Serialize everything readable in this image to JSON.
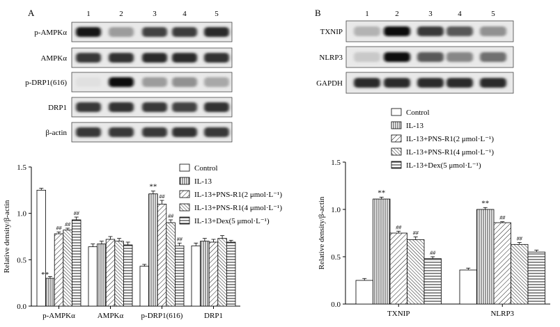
{
  "panel_a": {
    "letter": "A",
    "lane_numbers": [
      "1",
      "2",
      "3",
      "4",
      "5"
    ],
    "blots": [
      {
        "label": "p-AMPKα",
        "intensity": [
          0.95,
          0.35,
          0.75,
          0.78,
          0.85
        ]
      },
      {
        "label": "AMPKα",
        "intensity": [
          0.8,
          0.82,
          0.85,
          0.85,
          0.82
        ]
      },
      {
        "label": "p-DRP1(616)",
        "intensity": [
          0.05,
          1.0,
          0.35,
          0.4,
          0.3
        ]
      },
      {
        "label": "DRP1",
        "intensity": [
          0.8,
          0.82,
          0.8,
          0.75,
          0.82
        ]
      },
      {
        "label": "β-actin",
        "intensity": [
          0.8,
          0.8,
          0.8,
          0.82,
          0.8
        ]
      }
    ]
  },
  "panel_b": {
    "letter": "B",
    "lane_numbers": [
      "1",
      "2",
      "3",
      "4",
      "5"
    ],
    "blots": [
      {
        "label": "TXNIP",
        "intensity": [
          0.25,
          1.0,
          0.8,
          0.65,
          0.4
        ]
      },
      {
        "label": "NLRP3",
        "intensity": [
          0.15,
          1.0,
          0.65,
          0.45,
          0.55
        ]
      },
      {
        "label": "GAPDH",
        "intensity": [
          0.85,
          0.85,
          0.85,
          0.85,
          0.85
        ]
      }
    ]
  },
  "legend_items": [
    "Control",
    "IL-13",
    "IL-13+PNS-R1(2 μmol·L⁻¹)",
    "IL-13+PNS-R1(4 μmol·L⁻¹)",
    "IL-13+Dex(5 μmol·L⁻¹)"
  ],
  "significance": {
    "vs_control": "**",
    "vs_il13": "##"
  },
  "chart_data": [
    {
      "type": "bar",
      "panel": "A",
      "ylabel": "Relative density/β-actin",
      "ylim": [
        0,
        1.5
      ],
      "yticks": [
        "0.0",
        "0.5",
        "1.0",
        "1.5"
      ],
      "categories": [
        "p-AMPKα",
        "AMPKα",
        "p-DRP1(616)",
        "DRP1"
      ],
      "series": [
        {
          "name": "Control",
          "pattern": "white",
          "values": [
            1.25,
            0.64,
            0.43,
            0.65
          ],
          "errors": [
            0.02,
            0.03,
            0.02,
            0.03
          ],
          "marks": [
            "",
            "",
            "",
            ""
          ]
        },
        {
          "name": "IL-13",
          "pattern": "vertical",
          "values": [
            0.3,
            0.67,
            1.21,
            0.7
          ],
          "errors": [
            0.02,
            0.03,
            0.03,
            0.03
          ],
          "marks": [
            "**",
            "",
            "**",
            ""
          ]
        },
        {
          "name": "IL-13+PNS-R1(2 μmol·L⁻¹)",
          "pattern": "diagonal-right",
          "values": [
            0.78,
            0.72,
            1.1,
            0.69
          ],
          "errors": [
            0.02,
            0.03,
            0.04,
            0.03
          ],
          "marks": [
            "##",
            "",
            "##",
            ""
          ]
        },
        {
          "name": "IL-13+PNS-R1(4 μmol·L⁻¹)",
          "pattern": "diagonal-left",
          "values": [
            0.82,
            0.7,
            0.9,
            0.73
          ],
          "errors": [
            0.02,
            0.03,
            0.03,
            0.03
          ],
          "marks": [
            "##",
            "",
            "##",
            ""
          ]
        },
        {
          "name": "IL-13+Dex(5 μmol·L⁻¹)",
          "pattern": "horizontal",
          "values": [
            0.93,
            0.66,
            0.65,
            0.69
          ],
          "errors": [
            0.03,
            0.03,
            0.03,
            0.02
          ],
          "marks": [
            "##",
            "",
            "##",
            ""
          ]
        }
      ]
    },
    {
      "type": "bar",
      "panel": "B",
      "ylabel": "Relative density/β-actin",
      "ylim": [
        0,
        1.5
      ],
      "yticks": [
        "0.0",
        "0.5",
        "1.0",
        "1.5"
      ],
      "categories": [
        "TXNIP",
        "NLRP3"
      ],
      "series": [
        {
          "name": "Control",
          "pattern": "white",
          "values": [
            0.25,
            0.36
          ],
          "errors": [
            0.02,
            0.02
          ],
          "marks": [
            "",
            ""
          ]
        },
        {
          "name": "IL-13",
          "pattern": "vertical",
          "values": [
            1.11,
            1.0
          ],
          "errors": [
            0.02,
            0.02
          ],
          "marks": [
            "**",
            "**"
          ]
        },
        {
          "name": "IL-13+PNS-R1(2 μmol·L⁻¹)",
          "pattern": "diagonal-right",
          "values": [
            0.75,
            0.86
          ],
          "errors": [
            0.02,
            0.01
          ],
          "marks": [
            "##",
            "##"
          ]
        },
        {
          "name": "IL-13+PNS-R1(4 μmol·L⁻¹)",
          "pattern": "diagonal-left",
          "values": [
            0.68,
            0.63
          ],
          "errors": [
            0.03,
            0.02
          ],
          "marks": [
            "##",
            "##"
          ]
        },
        {
          "name": "IL-13+Dex(5 μmol·L⁻¹)",
          "pattern": "horizontal",
          "values": [
            0.48,
            0.55
          ],
          "errors": [
            0.02,
            0.02
          ],
          "marks": [
            "##",
            ""
          ]
        }
      ]
    }
  ]
}
